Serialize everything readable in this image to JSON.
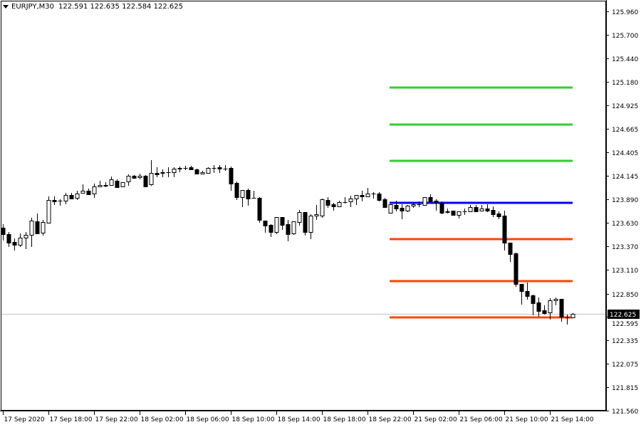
{
  "header": {
    "symbol": "EURJPY,M30",
    "ohlc": "122.591 122.635 122.584 122.625"
  },
  "colors": {
    "background": "#ffffff",
    "bull_body": "#ffffff",
    "bear_body": "#000000",
    "resistance": "#32cd32",
    "pivot": "#0000ff",
    "support": "#ff4500",
    "bid_line": "#c0c0c0"
  },
  "chart_data": {
    "type": "candlestick",
    "title": "EURJPY,M30",
    "ylim": [
      121.56,
      125.96
    ],
    "grid": false,
    "y_ticks": [
      "125.960",
      "125.700",
      "125.440",
      "125.180",
      "124.925",
      "124.665",
      "124.405",
      "124.145",
      "123.890",
      "123.630",
      "123.370",
      "123.110",
      "122.850",
      "122.595",
      "122.335",
      "122.075",
      "121.815",
      "121.560"
    ],
    "x_ticks": [
      {
        "bar": 0,
        "label": "17 Sep 2020"
      },
      {
        "bar": 8,
        "label": "17 Sep 18:00"
      },
      {
        "bar": 16,
        "label": "17 Sep 22:00"
      },
      {
        "bar": 24,
        "label": "18 Sep 02:00"
      },
      {
        "bar": 32,
        "label": "18 Sep 06:00"
      },
      {
        "bar": 40,
        "label": "18 Sep 10:00"
      },
      {
        "bar": 48,
        "label": "18 Sep 14:00"
      },
      {
        "bar": 56,
        "label": "18 Sep 18:00"
      },
      {
        "bar": 64,
        "label": "18 Sep 22:00"
      },
      {
        "bar": 72,
        "label": "21 Sep 02:00"
      },
      {
        "bar": 80,
        "label": "21 Sep 06:00"
      },
      {
        "bar": 88,
        "label": "21 Sep 10:00"
      },
      {
        "bar": 96,
        "label": "21 Sep 14:00"
      }
    ],
    "current_price": "122.625",
    "levels": [
      {
        "price": 125.121,
        "kind": "resistance",
        "from_bar": 68,
        "to_bar": 100
      },
      {
        "price": 124.713,
        "kind": "resistance",
        "from_bar": 68,
        "to_bar": 100
      },
      {
        "price": 124.313,
        "kind": "resistance",
        "from_bar": 68,
        "to_bar": 100
      },
      {
        "price": 123.85,
        "kind": "pivot",
        "from_bar": 68,
        "to_bar": 100
      },
      {
        "price": 123.45,
        "kind": "support",
        "from_bar": 68,
        "to_bar": 100
      },
      {
        "price": 122.987,
        "kind": "support",
        "from_bar": 68,
        "to_bar": 100
      },
      {
        "price": 122.587,
        "kind": "support",
        "from_bar": 68,
        "to_bar": 100
      }
    ],
    "ohlc": [
      [
        123.576,
        123.615,
        123.435,
        123.505
      ],
      [
        123.505,
        123.529,
        123.364,
        123.411
      ],
      [
        123.419,
        123.458,
        123.325,
        123.387
      ],
      [
        123.387,
        123.513,
        123.364,
        123.466
      ],
      [
        123.466,
        123.529,
        123.34,
        123.497
      ],
      [
        123.497,
        123.685,
        123.364,
        123.654
      ],
      [
        123.646,
        123.733,
        123.513,
        123.513
      ],
      [
        123.521,
        123.662,
        123.489,
        123.638
      ],
      [
        123.631,
        123.921,
        123.623,
        123.882
      ],
      [
        123.882,
        123.921,
        123.827,
        123.866
      ],
      [
        123.874,
        123.889,
        123.819,
        123.874
      ],
      [
        123.874,
        123.96,
        123.835,
        123.936
      ],
      [
        123.936,
        123.96,
        123.889,
        123.897
      ],
      [
        123.905,
        123.984,
        123.882,
        123.952
      ],
      [
        123.96,
        124.054,
        123.952,
        123.984
      ],
      [
        123.984,
        124.007,
        123.936,
        123.944
      ],
      [
        123.952,
        124.062,
        123.905,
        124.031
      ],
      [
        124.031,
        124.093,
        124.023,
        124.046
      ],
      [
        124.046,
        124.078,
        124.023,
        124.038
      ],
      [
        124.046,
        124.14,
        124.038,
        124.109
      ],
      [
        124.093,
        124.109,
        124.015,
        124.023
      ],
      [
        124.031,
        124.078,
        124.023,
        124.078
      ],
      [
        124.085,
        124.164,
        124.038,
        124.148
      ],
      [
        124.148,
        124.156,
        124.117,
        124.125
      ],
      [
        124.133,
        124.172,
        124.109,
        124.148
      ],
      [
        124.148,
        124.156,
        124.031,
        124.031
      ],
      [
        124.054,
        124.321,
        124.038,
        124.18
      ],
      [
        124.18,
        124.242,
        124.133,
        124.164
      ],
      [
        124.187,
        124.219,
        124.133,
        124.18
      ],
      [
        124.187,
        124.242,
        124.133,
        124.19
      ],
      [
        124.187,
        124.242,
        124.133,
        124.227
      ],
      [
        124.227,
        124.25,
        124.187,
        124.235
      ],
      [
        124.235,
        124.258,
        124.211,
        124.235
      ],
      [
        124.242,
        124.258,
        124.211,
        124.219
      ],
      [
        124.219,
        124.227,
        124.164,
        124.172
      ],
      [
        124.172,
        124.203,
        124.164,
        124.187
      ],
      [
        124.18,
        124.242,
        124.18,
        124.235
      ],
      [
        124.235,
        124.266,
        124.18,
        124.235
      ],
      [
        124.242,
        124.266,
        124.18,
        124.227
      ],
      [
        124.227,
        124.266,
        124.203,
        124.23
      ],
      [
        124.235,
        124.25,
        123.984,
        124.062
      ],
      [
        124.07,
        124.085,
        123.882,
        123.913
      ],
      [
        123.913,
        123.991,
        123.803,
        123.991
      ],
      [
        123.991,
        124.007,
        123.819,
        123.897
      ],
      [
        123.905,
        123.984,
        123.897,
        123.905
      ],
      [
        123.905,
        123.913,
        123.631,
        123.662
      ],
      [
        123.654,
        123.654,
        123.521,
        123.599
      ],
      [
        123.607,
        123.615,
        123.474,
        123.529
      ],
      [
        123.529,
        123.693,
        123.505,
        123.693
      ],
      [
        123.693,
        123.693,
        123.552,
        123.607
      ],
      [
        123.615,
        123.662,
        123.427,
        123.505
      ],
      [
        123.513,
        123.646,
        123.497,
        123.646
      ],
      [
        123.638,
        123.772,
        123.599,
        123.748
      ],
      [
        123.748,
        123.748,
        123.489,
        123.529
      ],
      [
        123.529,
        123.725,
        123.45,
        123.709
      ],
      [
        123.709,
        123.827,
        123.662,
        123.725
      ],
      [
        123.709,
        123.897,
        123.685,
        123.889
      ],
      [
        123.882,
        123.913,
        123.795,
        123.827
      ],
      [
        123.835,
        123.85,
        123.764,
        123.811
      ],
      [
        123.811,
        123.874,
        123.803,
        123.858
      ],
      [
        123.858,
        123.913,
        123.842,
        123.86
      ],
      [
        123.866,
        123.929,
        123.803,
        123.897
      ],
      [
        123.897,
        123.936,
        123.827,
        123.936
      ],
      [
        123.936,
        123.984,
        123.866,
        123.921
      ],
      [
        123.921,
        124.015,
        123.913,
        123.952
      ],
      [
        123.952,
        123.968,
        123.897,
        123.95
      ],
      [
        123.952,
        123.968,
        123.866,
        123.882
      ],
      [
        123.889,
        123.905,
        123.795,
        123.803
      ],
      [
        123.74,
        123.835,
        123.74,
        123.835
      ],
      [
        123.827,
        123.874,
        123.756,
        123.787
      ],
      [
        123.795,
        123.835,
        123.67,
        123.764
      ],
      [
        123.764,
        123.827,
        123.748,
        123.819
      ],
      [
        123.819,
        123.85,
        123.795,
        123.835
      ],
      [
        123.835,
        123.866,
        123.803,
        123.838
      ],
      [
        123.827,
        123.913,
        123.827,
        123.913
      ],
      [
        123.913,
        123.944,
        123.866,
        123.866
      ],
      [
        123.874,
        123.889,
        123.764,
        123.858
      ],
      [
        123.85,
        123.866,
        123.725,
        123.74
      ],
      [
        123.748,
        123.787,
        123.733,
        123.756
      ],
      [
        123.764,
        123.764,
        123.717,
        123.717
      ],
      [
        123.717,
        123.756,
        123.678,
        123.756
      ],
      [
        123.756,
        123.787,
        123.717,
        123.758
      ],
      [
        123.756,
        123.827,
        123.756,
        123.803
      ],
      [
        123.803,
        123.827,
        123.748,
        123.756
      ],
      [
        123.764,
        123.827,
        123.764,
        123.787
      ],
      [
        123.787,
        123.835,
        123.748,
        123.764
      ],
      [
        123.772,
        123.811,
        123.693,
        123.725
      ],
      [
        123.733,
        123.756,
        123.67,
        123.701
      ],
      [
        123.709,
        123.764,
        123.325,
        123.411
      ],
      [
        123.411,
        123.411,
        123.199,
        123.285
      ],
      [
        123.293,
        123.301,
        122.925,
        122.956
      ],
      [
        122.956,
        122.956,
        122.729,
        122.878
      ],
      [
        122.878,
        122.972,
        122.784,
        122.823
      ],
      [
        122.831,
        122.838,
        122.611,
        122.744
      ],
      [
        122.752,
        122.807,
        122.595,
        122.658
      ],
      [
        122.666,
        122.721,
        122.619,
        122.635
      ],
      [
        122.642,
        122.799,
        122.564,
        122.776
      ],
      [
        122.776,
        122.807,
        122.721,
        122.791
      ],
      [
        122.791,
        122.791,
        122.54,
        122.595
      ],
      [
        122.587,
        122.619,
        122.509,
        122.591
      ],
      [
        122.591,
        122.635,
        122.584,
        122.625
      ]
    ]
  }
}
